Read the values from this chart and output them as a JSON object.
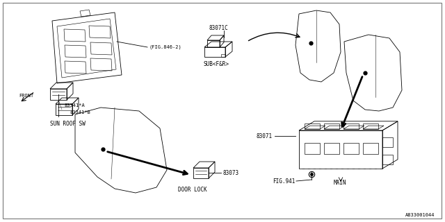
{
  "bg_color": "#ffffff",
  "line_color": "#000000",
  "fig_id": "A833001044",
  "lw": 0.6,
  "parts": {
    "83071C_label": "83071C",
    "subFR_label": "SUB<F&R>",
    "fig846_label": "(FIG.846-2)",
    "83341A_label": "83341*A",
    "83341B_label": "83341*B",
    "sunroof_label": "SUN ROOF SW",
    "83073_label": "83073",
    "doorlock_label": "DOOR LOCK",
    "83071_label": "83071",
    "fig941_label": "FIG.941",
    "main_label": "MAIN",
    "front_label": "FRONT"
  }
}
